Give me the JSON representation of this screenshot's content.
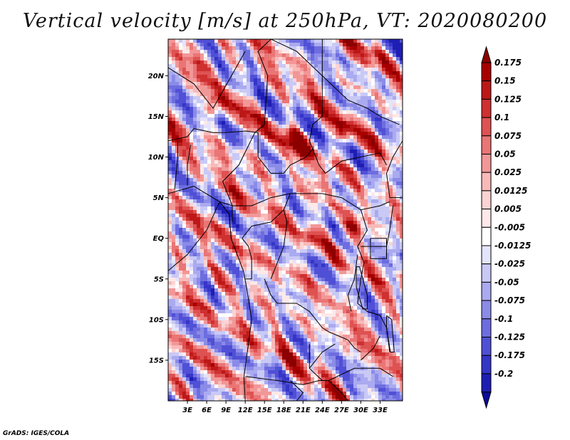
{
  "title": "Vertical velocity [m/s] at 250hPa, VT: 2020080200",
  "footer": "GrADS: IGES/COLA",
  "map": {
    "lat_range": [
      -20,
      24.5
    ],
    "lon_range": [
      0,
      36.5
    ],
    "lat_ticks": [
      {
        "value": 20,
        "label": "20N"
      },
      {
        "value": 15,
        "label": "15N"
      },
      {
        "value": 10,
        "label": "10N"
      },
      {
        "value": 5,
        "label": "5N"
      },
      {
        "value": 0,
        "label": "EQ"
      },
      {
        "value": -5,
        "label": "5S"
      },
      {
        "value": -10,
        "label": "10S"
      },
      {
        "value": -15,
        "label": "15S"
      }
    ],
    "lon_ticks": [
      {
        "value": 3,
        "label": "3E"
      },
      {
        "value": 6,
        "label": "6E"
      },
      {
        "value": 9,
        "label": "9E"
      },
      {
        "value": 12,
        "label": "12E"
      },
      {
        "value": 15,
        "label": "15E"
      },
      {
        "value": 18,
        "label": "18E"
      },
      {
        "value": 21,
        "label": "21E"
      },
      {
        "value": 24,
        "label": "24E"
      },
      {
        "value": 27,
        "label": "27E"
      },
      {
        "value": 30,
        "label": "30E"
      },
      {
        "value": 33,
        "label": "33E"
      }
    ],
    "field_hotspots": [
      {
        "lon": 7,
        "lat": 16,
        "w": 0.12
      },
      {
        "lon": 19.5,
        "lat": 12.5,
        "w": 0.15
      },
      {
        "lon": 21,
        "lat": 11,
        "w": 0.16
      },
      {
        "lon": 27,
        "lat": 13,
        "w": 0.12
      },
      {
        "lon": 28.5,
        "lat": 1,
        "w": 0.15
      },
      {
        "lon": 22,
        "lat": 0,
        "w": 0.08
      },
      {
        "lon": 12,
        "lat": 10.5,
        "w": 0.07
      },
      {
        "lon": 13,
        "lat": 8,
        "w": 0.05
      },
      {
        "lon": 24,
        "lat": 7,
        "w": 0.06
      },
      {
        "lon": 6,
        "lat": 22,
        "w": 0.05
      },
      {
        "lon": 31,
        "lat": 22,
        "w": 0.05
      },
      {
        "lon": 5,
        "lat": -1,
        "w": 0.05
      },
      {
        "lon": 28,
        "lat": -13,
        "w": 0.04
      },
      {
        "lon": 14,
        "lat": -14,
        "w": 0.04
      }
    ]
  },
  "colorbar": {
    "levels": [
      {
        "label": "0.175",
        "color": "#a80000"
      },
      {
        "label": "0.15",
        "color": "#bd1818"
      },
      {
        "label": "0.125",
        "color": "#cf3030"
      },
      {
        "label": "0.1",
        "color": "#de5252"
      },
      {
        "label": "0.075",
        "color": "#ea7575"
      },
      {
        "label": "0.05",
        "color": "#f29797"
      },
      {
        "label": "0.025",
        "color": "#f8b9b9"
      },
      {
        "label": "0.0125",
        "color": "#fbd3d3"
      },
      {
        "label": "0.005",
        "color": "#fde9e9"
      },
      {
        "label": "-0.005",
        "color": "#ffffff"
      },
      {
        "label": "-0.0125",
        "color": "#e4e4fb"
      },
      {
        "label": "-0.025",
        "color": "#c9c9f6"
      },
      {
        "label": "-0.05",
        "color": "#aaaaf0"
      },
      {
        "label": "-0.075",
        "color": "#8b8be8"
      },
      {
        "label": "-0.1",
        "color": "#6d6de0"
      },
      {
        "label": "-0.125",
        "color": "#5050d6"
      },
      {
        "label": "-0.175",
        "color": "#3535c8"
      },
      {
        "label": "-0.2",
        "color": "#1e1eb4"
      }
    ],
    "top_color": "#8c0000",
    "bottom_color": "#0a0a9a"
  }
}
